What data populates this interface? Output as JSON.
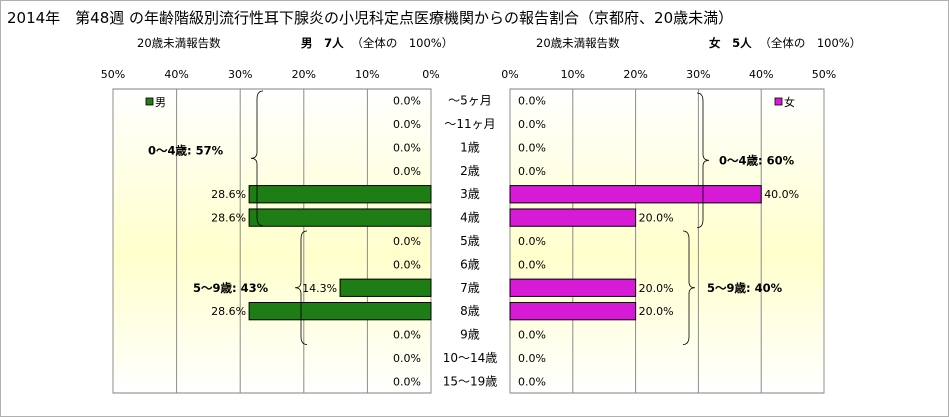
{
  "title": "2014年　第48週 の年齢階級別流行性耳下腺炎の小児科定点医療機関からの報告割合（京都府、20歳未満）",
  "male_panel": {
    "subtitle_left": "20歳未満報告数",
    "subtitle_gender": "男",
    "subtitle_count": "7人",
    "subtitle_total": "（全体の　100%）",
    "legend": "男"
  },
  "female_panel": {
    "subtitle_left": "20歳未満報告数",
    "subtitle_gender": "女",
    "subtitle_count": "5人",
    "subtitle_total": "（全体の　100%）",
    "legend": "女"
  },
  "colors": {
    "male": "#1e7d14",
    "female": "#d61ad6",
    "bg_center": "#ffffcc"
  },
  "chart_data": {
    "type": "bar",
    "categories": [
      "～5ヶ月",
      "～11ヶ月",
      "1歳",
      "2歳",
      "3歳",
      "4歳",
      "5歳",
      "6歳",
      "7歳",
      "8歳",
      "9歳",
      "10～14歳",
      "15～19歳"
    ],
    "xlim": [
      0,
      50
    ],
    "ticks": [
      0,
      10,
      20,
      30,
      40,
      50
    ],
    "tick_labels": [
      "0%",
      "10%",
      "20%",
      "30%",
      "40%",
      "50%"
    ],
    "series": [
      {
        "name": "男",
        "values": [
          0,
          0,
          0,
          0,
          28.6,
          28.6,
          0,
          0,
          14.3,
          28.6,
          0,
          0,
          0
        ],
        "labels": [
          "0.0%",
          "0.0%",
          "0.0%",
          "0.0%",
          "28.6%",
          "28.6%",
          "0.0%",
          "0.0%",
          "14.3%",
          "28.6%",
          "0.0%",
          "0.0%",
          "0.0%"
        ]
      },
      {
        "name": "女",
        "values": [
          0,
          0,
          0,
          0,
          40,
          20,
          0,
          0,
          20,
          20,
          0,
          0,
          0
        ],
        "labels": [
          "0.0%",
          "0.0%",
          "0.0%",
          "0.0%",
          "40.0%",
          "20.0%",
          "0.0%",
          "0.0%",
          "20.0%",
          "20.0%",
          "0.0%",
          "0.0%",
          "0.0%"
        ]
      }
    ],
    "annotations": {
      "male": [
        {
          "text": "0～4歳: 57%"
        },
        {
          "text": "5～9歳: 43%"
        }
      ],
      "female": [
        {
          "text": "0～4歳: 60%"
        },
        {
          "text": "5～9歳: 40%"
        }
      ]
    },
    "grid": true
  }
}
